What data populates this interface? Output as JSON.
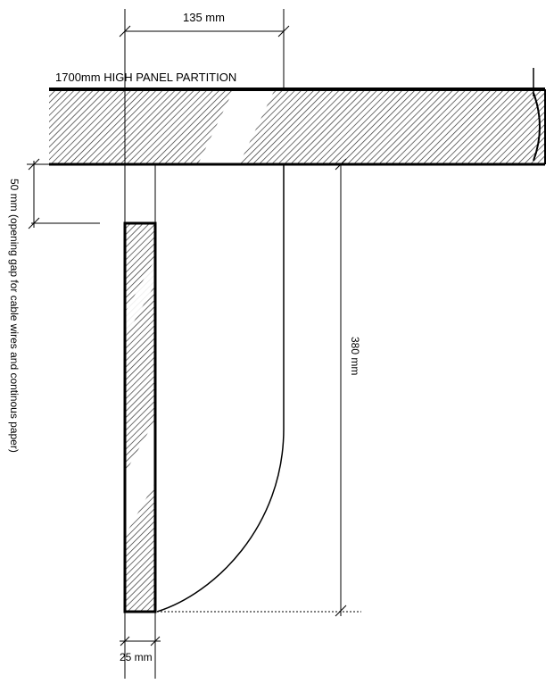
{
  "labels": {
    "top_width": "135 mm",
    "partition": "1700mm HIGH PANEL PARTITION",
    "gap": "50 mm  (opening gap for cable wires and continous paper)",
    "height": "380 mm",
    "bottom_width": "25 mm"
  },
  "colors": {
    "line": "#000000",
    "hatch": "#333333",
    "background": "#ffffff"
  }
}
